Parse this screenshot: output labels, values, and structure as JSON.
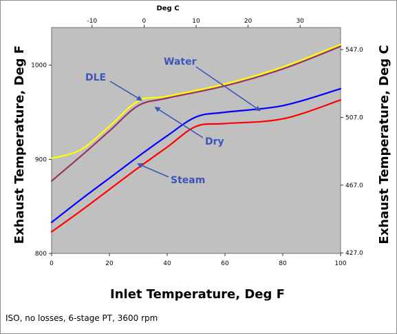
{
  "chart_data": {
    "type": "line",
    "x_axis": {
      "label": "Inlet Temperature, Deg F",
      "range": [
        0,
        100
      ],
      "ticks": [
        0,
        20,
        40,
        60,
        80,
        100
      ]
    },
    "x2_axis": {
      "label": "Deg C",
      "range": [
        -17.78,
        37.78
      ],
      "ticks": [
        -10,
        0,
        10,
        20,
        30
      ]
    },
    "y_axis": {
      "label": "Exhaust Temperature, Deg F",
      "range": [
        800,
        1040
      ],
      "ticks": [
        800,
        900,
        1000
      ]
    },
    "y2_axis": {
      "label": "Exhaust Temperature, Deg C",
      "range": [
        426.67,
        560
      ],
      "ticks": [
        "427.0",
        "467.0",
        "507.0",
        "547.0"
      ]
    },
    "grid": false,
    "background": "#c0c0c0",
    "series": [
      {
        "name": "DLE",
        "color": "#ffff00",
        "points": [
          [
            0,
            901
          ],
          [
            10,
            910
          ],
          [
            20,
            935
          ],
          [
            30,
            962
          ],
          [
            40,
            967
          ],
          [
            60,
            980
          ],
          [
            80,
            998
          ],
          [
            100,
            1022
          ]
        ]
      },
      {
        "name": "Dry",
        "color": "#993366",
        "points": [
          [
            0,
            877
          ],
          [
            10,
            903
          ],
          [
            20,
            930
          ],
          [
            30,
            957
          ],
          [
            40,
            965
          ],
          [
            60,
            978
          ],
          [
            80,
            996
          ],
          [
            100,
            1020
          ]
        ]
      },
      {
        "name": "Water",
        "color": "#0000ff",
        "points": [
          [
            0,
            833
          ],
          [
            10,
            857
          ],
          [
            20,
            880
          ],
          [
            30,
            903
          ],
          [
            40,
            925
          ],
          [
            50,
            945
          ],
          [
            60,
            950
          ],
          [
            80,
            957
          ],
          [
            100,
            975
          ]
        ]
      },
      {
        "name": "Steam",
        "color": "#ff0000",
        "points": [
          [
            0,
            823
          ],
          [
            10,
            845
          ],
          [
            20,
            868
          ],
          [
            30,
            891
          ],
          [
            40,
            913
          ],
          [
            50,
            935
          ],
          [
            60,
            938
          ],
          [
            80,
            943
          ],
          [
            100,
            963
          ]
        ]
      }
    ],
    "annotations": [
      {
        "text": "Water",
        "target": [
          72,
          952
        ]
      },
      {
        "text": "DLE",
        "target": [
          31,
          963
        ]
      },
      {
        "text": "Dry",
        "target": [
          36,
          955
        ]
      },
      {
        "text": "Steam",
        "target": [
          30,
          895
        ]
      }
    ],
    "footnote": "ISO, no losses, 6-stage PT, 3600 rpm"
  }
}
